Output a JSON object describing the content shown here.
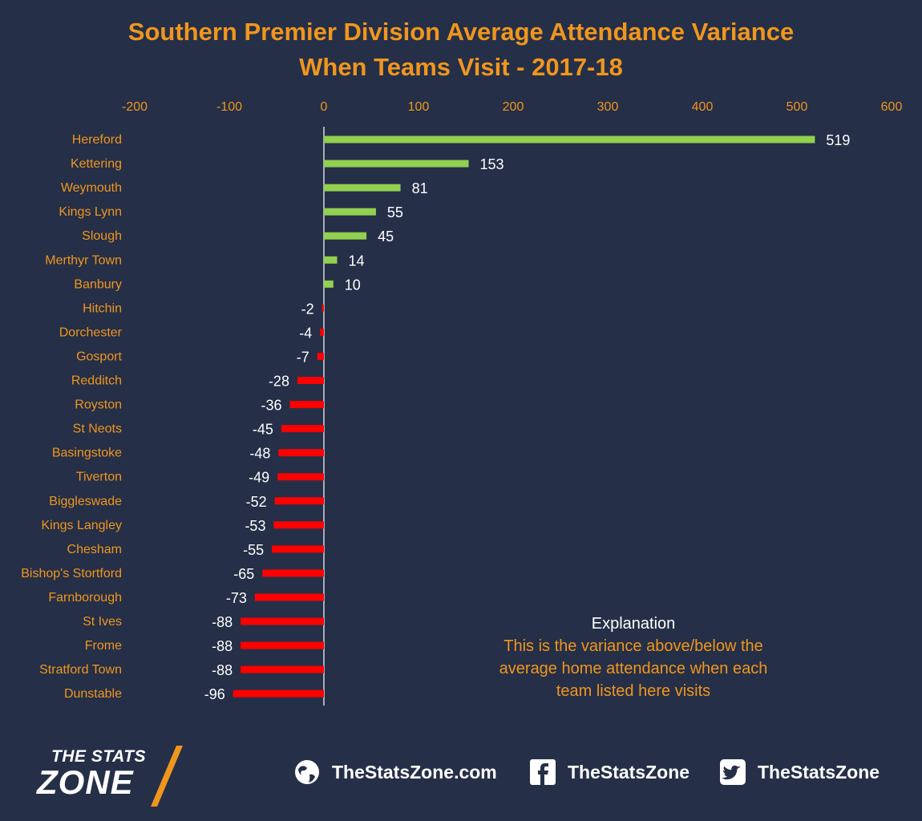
{
  "title_line1": "Southern Premier Division Average Attendance Variance",
  "title_line2": "When Teams Visit - 2017-18",
  "colors": {
    "positive": "#92d050",
    "negative": "#ff0000",
    "accent": "#f0961e",
    "background": "#252f47"
  },
  "chart_data": {
    "type": "bar",
    "orientation": "horizontal",
    "categories": [
      "Hereford",
      "Kettering",
      "Weymouth",
      "Kings Lynn",
      "Slough",
      "Merthyr Town",
      "Banbury",
      "Hitchin",
      "Dorchester",
      "Gosport",
      "Redditch",
      "Royston",
      "St Neots",
      "Basingstoke",
      "Tiverton",
      "Biggleswade",
      "Kings Langley",
      "Chesham",
      "Bishop's Stortford",
      "Farnborough",
      "St Ives",
      "Frome",
      "Stratford Town",
      "Dunstable"
    ],
    "values": [
      519,
      153,
      81,
      55,
      45,
      14,
      10,
      -2,
      -4,
      -7,
      -28,
      -36,
      -45,
      -48,
      -49,
      -52,
      -53,
      -55,
      -65,
      -73,
      -88,
      -88,
      -88,
      -96
    ],
    "xlim": [
      -200,
      600
    ],
    "xticks": [
      "-200",
      "-100",
      "0",
      "100",
      "200",
      "300",
      "400",
      "500",
      "600"
    ],
    "axis_position": "top",
    "grid": false,
    "data_labels": true
  },
  "explanation": {
    "heading": "Explanation",
    "line1": "This is the variance above/below the",
    "line2": "average home attendance when each",
    "line3": "team listed here visits"
  },
  "footer": {
    "logo_top": "THE STATS",
    "logo_bottom": "ZONE",
    "website": "TheStatsZone.com",
    "facebook": "TheStatsZone",
    "twitter": "TheStatsZone",
    "icons": [
      "globe-icon",
      "facebook-icon",
      "twitter-icon"
    ]
  }
}
